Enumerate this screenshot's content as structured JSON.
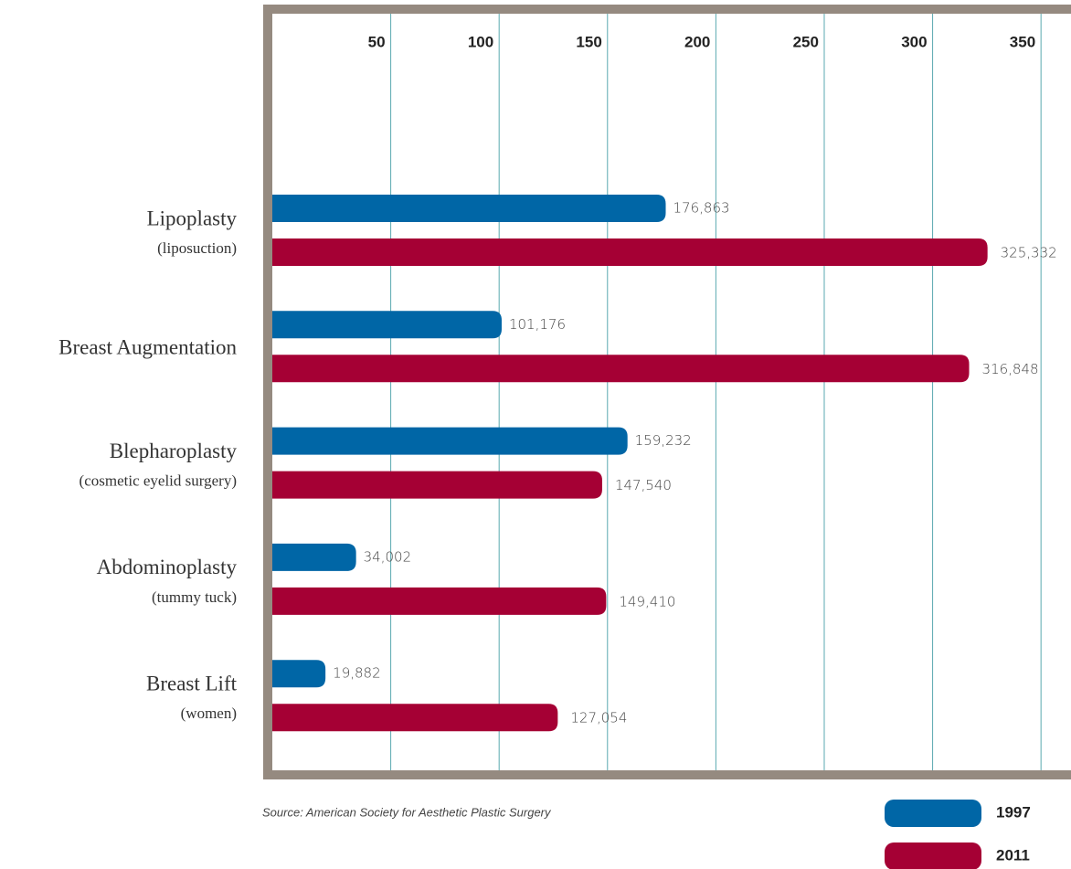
{
  "chart_data": {
    "type": "hbar",
    "categories": [
      "Lipoplasty",
      "Breast Augmentation",
      "Blepharoplasty",
      "Abdominoplasty",
      "Breast Lift"
    ],
    "category_notes": [
      "(liposuction)",
      null,
      "(cosmetic eyelid surgery)",
      "(tummy tuck)",
      "(women)"
    ],
    "series": [
      {
        "name": "1997",
        "color": "#0066a6",
        "values": [
          176.863,
          101.176,
          159.232,
          34.002,
          19.882
        ],
        "value_labels": [
          "176,863",
          "101,176",
          "159,232",
          "34,002",
          "19,882"
        ]
      },
      {
        "name": "2011",
        "color": "#a50034",
        "values": [
          325.332,
          316.848,
          147.54,
          149.41,
          127.054
        ],
        "value_labels": [
          "325,332",
          "316,848",
          "147,540",
          "149,410",
          "127,054"
        ]
      }
    ],
    "xlim": [
      0,
      363
    ],
    "xticks": [
      50,
      100,
      150,
      200,
      250,
      300,
      350
    ],
    "grid": true,
    "grid_color": "#5aa9b0",
    "frame_color": "#958a80",
    "source": "Source: American Society for Aesthetic Plastic Surgery"
  }
}
